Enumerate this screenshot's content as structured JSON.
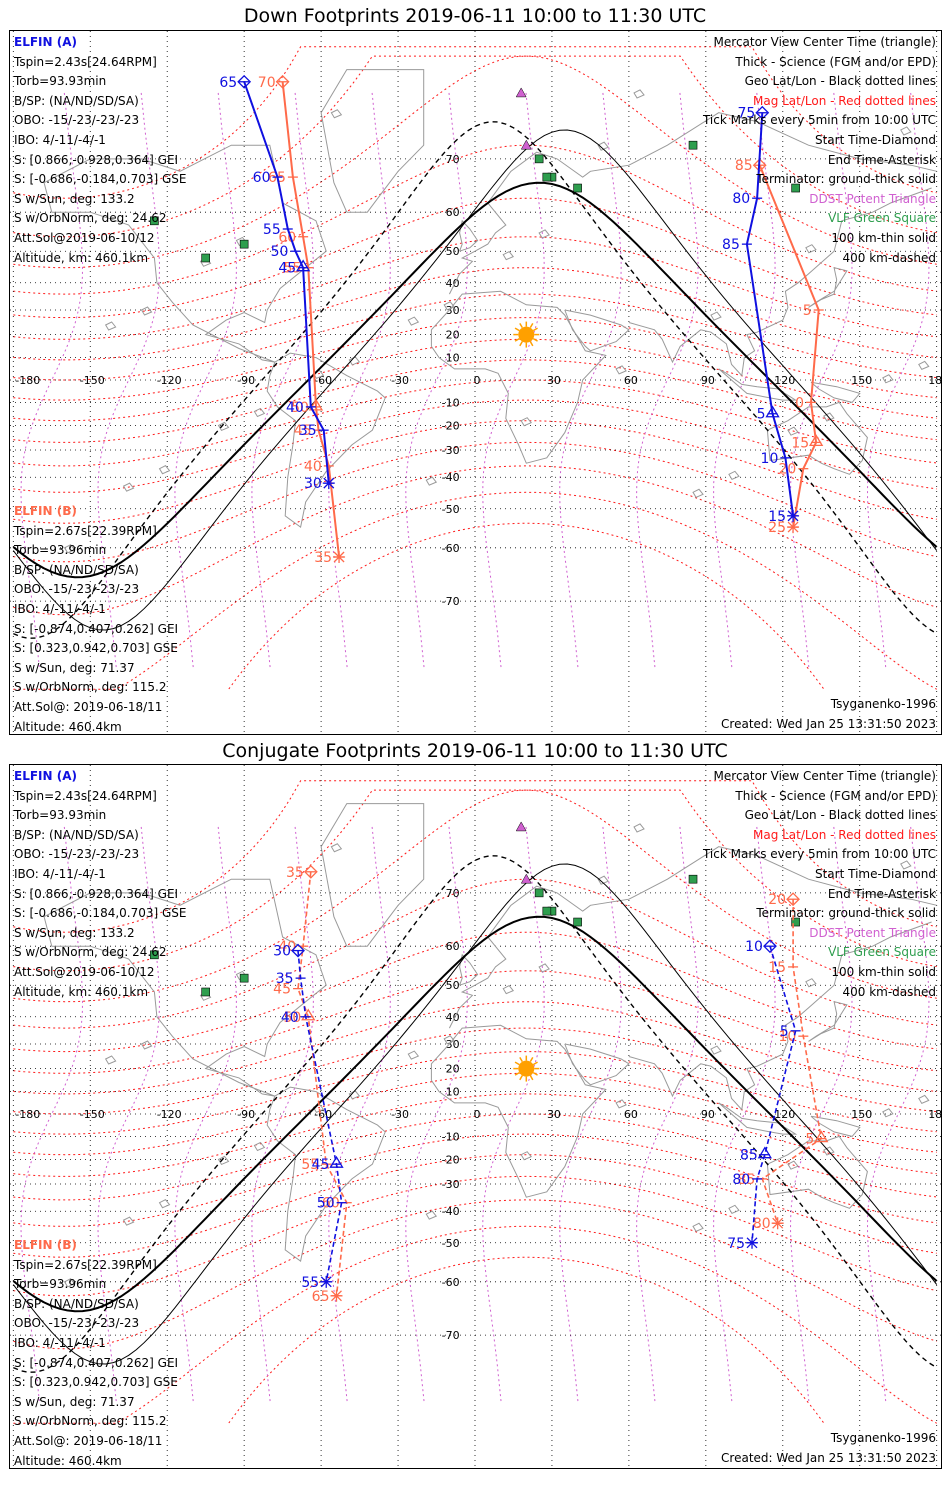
{
  "panels": [
    {
      "title": "Down Footprints 2019-06-11 10:00 to 11:30 UTC",
      "elfin_a": {
        "name": "ELFIN (A)",
        "lines": [
          "Tspin=2.43s[24.64RPM]",
          "Torb=93.93min",
          "B/SP: (NA/ND/SD/SA)",
          "OBO: -15/-23/-23/-23",
          "IBO: 4/-11/-4/-1",
          "S: [0.866,-0.928,0.364] GEI",
          "S: [-0.686,-0.184,0.703] GSE",
          "S w/Sun, deg: 133.2",
          "S w/OrbNorm, deg: 24.62",
          "Att.Sol@2019-06-10/12",
          "Altitude, km: 460.1km"
        ]
      },
      "elfin_b": {
        "name": "ELFIN (B)",
        "lines": [
          "Tspin=2.67s[22.39RPM]",
          "Torb=93.96min",
          "B/SP: (NA/ND/SD/SA)",
          "OBO: -15/-23/-23/-23",
          "IBO: 4/-11/-4/-1",
          "S: [-0.874,0.407,0.262] GEI",
          "S: [0.323,0.942,0.703] GSE",
          "S w/Sun, deg: 71.37",
          "S w/OrbNorm, deg: 115.2",
          "Att.Sol@: 2019-06-18/11",
          "Altitude: 460.4km"
        ]
      },
      "legend": [
        "Mercator View Center Time (triangle)",
        "Thick - Science (FGM and/or EPD)",
        "Geo Lat/Lon - Black dotted lines",
        "Mag Lat/Lon - Red dotted lines",
        "Tick Marks every 5min from 10:00 UTC",
        "Start Time-Diamond",
        "End Time-Asterisk",
        "Terminator: ground-thick solid",
        "DDST Potent Triangle",
        "VLF Green Square",
        "100 km-thin solid",
        "400 km-dashed"
      ],
      "model": "Tsyganenko-1996",
      "created": "Created: Wed Jan 25 13:31:50 2023"
    },
    {
      "title": "Conjugate Footprints 2019-06-11 10:00 to 11:30 UTC",
      "elfin_a": {
        "name": "ELFIN (A)",
        "lines": [
          "Tspin=2.43s[24.64RPM]",
          "Torb=93.93min",
          "B/SP: (NA/ND/SD/SA)",
          "OBO: -15/-23/-23/-23",
          "IBO: 4/-11/-4/-1",
          "S: [0.866,-0.928,0.364] GEI",
          "S: [-0.686,-0.184,0.703] GSE",
          "S w/Sun, deg: 133.2",
          "S w/OrbNorm, deg: 24.62",
          "Att.Sol@2019-06-10/12",
          "Altitude, km: 460.1km"
        ]
      },
      "elfin_b": {
        "name": "ELFIN (B)",
        "lines": [
          "Tspin=2.67s[22.39RPM]",
          "Torb=93.96min",
          "B/SP: (NA/ND/SD/SA)",
          "OBO: -15/-23/-23/-23",
          "IBO: 4/-11/-4/-1",
          "S: [-0.874,0.407,0.262] GEI",
          "S: [0.323,0.942,0.703] GSE",
          "S w/Sun, deg: 71.37",
          "S w/OrbNorm, deg: 115.2",
          "Att.Sol@: 2019-06-18/11",
          "Altitude: 460.4km"
        ]
      },
      "legend": [
        "Mercator View Center Time (triangle)",
        "Thick - Science (FGM and/or EPD)",
        "Geo Lat/Lon - Black dotted lines",
        "Mag Lat/Lon - Red dotted lines",
        "Tick Marks every 5min from 10:00 UTC",
        "Start Time-Diamond",
        "End Time-Asterisk",
        "Terminator: ground-thick solid",
        "DDST Potent Triangle",
        "VLF Green Square",
        "100 km-thin solid",
        "400 km-dashed"
      ],
      "model": "Tsyganenko-1996",
      "created": "Created: Wed Jan 25 13:31:50 2023"
    }
  ],
  "map": {
    "lon_ticks": [
      "-180",
      "-150",
      "-120",
      "-90",
      "-60",
      "-30",
      "0",
      "30",
      "60",
      "90",
      "120",
      "150",
      "180"
    ],
    "lat_ticks": [
      "70",
      "60",
      "50",
      "40",
      "30",
      "20",
      "10",
      "-10",
      "-20",
      "-30",
      "-40",
      "-50",
      "-60",
      "-70"
    ]
  },
  "colors": {
    "elfin_a": "#1010e0",
    "elfin_b": "#ff6a4a",
    "mag_grid": "#ff1a1a",
    "geo_grid": "#000000",
    "terminator": "#000000",
    "sun": "#ffa000",
    "ddst_triangle": "#d060d0",
    "vlf_square": "#2e9e4e"
  },
  "tracks": {
    "down": {
      "a_west": [
        [
          "65",
          -90,
          79
        ],
        [
          "60",
          -77,
          67
        ],
        [
          "55",
          -73,
          56
        ],
        [
          "50",
          -70,
          50
        ],
        [
          "45",
          -67,
          45
        ],
        [
          "40",
          -64,
          -12
        ],
        [
          "35",
          -59,
          -22
        ],
        [
          "30",
          -57,
          -42
        ]
      ],
      "b_west": [
        [
          "70",
          -75,
          79
        ],
        [
          "65",
          -71,
          67
        ],
        [
          "60",
          -67,
          54
        ],
        [
          "55",
          -65,
          45
        ],
        [
          "50",
          -62,
          -12
        ],
        [
          "45",
          -61,
          -22
        ],
        [
          "40",
          -57,
          -36
        ],
        [
          "35",
          -53,
          -62
        ]
      ],
      "a_east": [
        [
          "75",
          112,
          76
        ],
        [
          "80",
          110,
          63
        ],
        [
          "85",
          106,
          52
        ],
        [
          "5",
          116,
          -15
        ],
        [
          "10",
          121,
          -33
        ],
        [
          "15",
          124,
          -52
        ]
      ],
      "b_east": [
        [
          "85",
          111,
          69
        ],
        [
          "5",
          134,
          30
        ],
        [
          "0",
          131,
          -10
        ],
        [
          "15",
          133,
          -27
        ],
        [
          "20",
          128,
          -37
        ],
        [
          "25",
          124,
          -55
        ]
      ]
    },
    "conj": {
      "a_west": [
        [
          "30",
          -69,
          59
        ],
        [
          "35",
          -68,
          52
        ],
        [
          "40",
          -66,
          40
        ],
        [
          "45",
          -54,
          -22
        ],
        [
          "50",
          -52,
          -37
        ],
        [
          "55",
          -58,
          -60
        ]
      ],
      "b_west": [
        [
          "35",
          -64,
          73
        ],
        [
          "40",
          -67,
          60
        ],
        [
          "45",
          -69,
          49
        ],
        [
          "50",
          -65,
          40
        ],
        [
          "55",
          -58,
          -22
        ],
        [
          "60",
          -50,
          -37
        ],
        [
          "65",
          -54,
          -63
        ]
      ],
      "a_east": [
        [
          "10",
          115,
          60
        ],
        [
          "5",
          125,
          35
        ],
        [
          "85",
          113,
          -18
        ],
        [
          "80",
          110,
          -28
        ],
        [
          "75",
          108,
          -50
        ]
      ],
      "b_east": [
        [
          "20",
          124,
          69
        ],
        [
          "15",
          124,
          55
        ],
        [
          "10",
          128,
          33
        ],
        [
          "5",
          135,
          -11
        ],
        [
          "85",
          112,
          -28
        ],
        [
          "80",
          118,
          -44
        ]
      ]
    }
  }
}
